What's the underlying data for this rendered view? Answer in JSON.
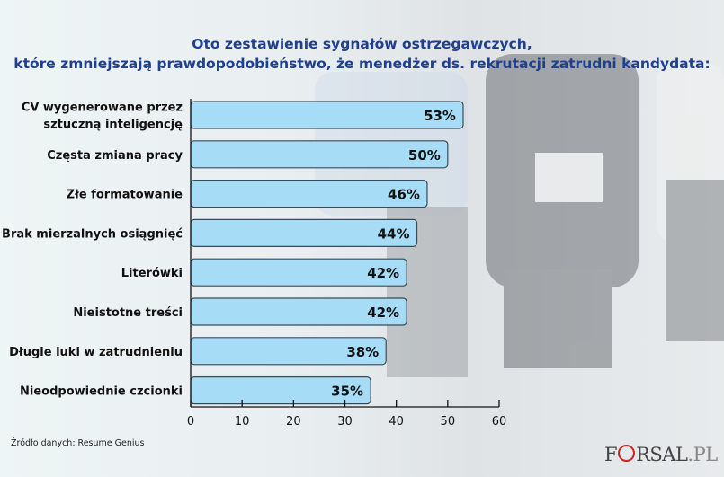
{
  "chart_data": {
    "type": "bar",
    "orientation": "horizontal",
    "title": "Oto zestawienie sygnałów ostrzegawczych,\nktóre zmniejszają prawdopodobieństwo, że menedżer ds. rekrutacji zatrudni kandydata:",
    "title_lines": [
      "Oto zestawienie sygnałów ostrzegawczych,",
      "które zmniejszają prawdopodobieństwo, że menedżer ds. rekrutacji zatrudni kandydata:"
    ],
    "categories": [
      [
        "CV wygenerowane przez",
        "sztuczną inteligencję"
      ],
      [
        "Częsta zmiana pracy"
      ],
      [
        "Złe formatowanie"
      ],
      [
        "Brak mierzalnych osiągnięć"
      ],
      [
        "Literówki"
      ],
      [
        "Nieistotne treści"
      ],
      [
        "Długie luki w zatrudnieniu"
      ],
      [
        "Nieodpowiednie czcionki"
      ]
    ],
    "values": [
      53,
      50,
      46,
      44,
      42,
      42,
      38,
      35
    ],
    "labels": [
      "53%",
      "50%",
      "46%",
      "44%",
      "42%",
      "42%",
      "38%",
      "35%"
    ],
    "xlim": [
      0,
      60
    ],
    "xticks": [
      "0",
      "10",
      "20",
      "30",
      "40",
      "50",
      "60"
    ],
    "grid": false,
    "bar_color": "#a7dcf7",
    "title_color": "#1f3f8f"
  },
  "source": "Źródło danych: Resume Genius",
  "logo": {
    "pre": "F",
    "post": "RSAL",
    "suffix": ".PL"
  }
}
